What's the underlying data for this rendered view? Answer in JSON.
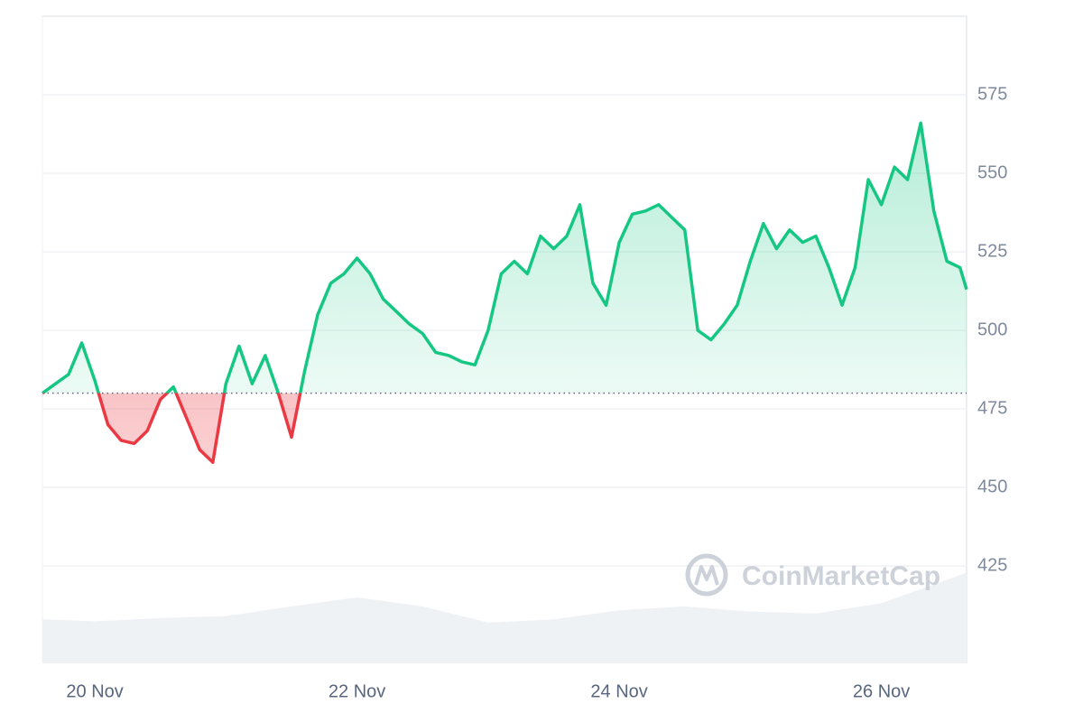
{
  "chart_data": {
    "type": "line",
    "watermark": "CoinMarketCap",
    "x": [
      19.6,
      19.7,
      19.8,
      19.9,
      20.0,
      20.1,
      20.2,
      20.3,
      20.4,
      20.5,
      20.6,
      20.7,
      20.8,
      20.9,
      21.0,
      21.1,
      21.2,
      21.3,
      21.4,
      21.5,
      21.6,
      21.7,
      21.8,
      21.9,
      22.0,
      22.1,
      22.2,
      22.3,
      22.4,
      22.5,
      22.6,
      22.7,
      22.8,
      22.9,
      23.0,
      23.1,
      23.2,
      23.3,
      23.4,
      23.5,
      23.6,
      23.7,
      23.8,
      23.9,
      24.0,
      24.1,
      24.2,
      24.3,
      24.4,
      24.5,
      24.6,
      24.7,
      24.8,
      24.9,
      25.0,
      25.1,
      25.2,
      25.3,
      25.4,
      25.5,
      25.6,
      25.7,
      25.8,
      25.9,
      26.0,
      26.1,
      26.2,
      26.3,
      26.4,
      26.5,
      26.6,
      26.65
    ],
    "series": [
      {
        "color": "#16c784",
        "negative_color": "#ea3943",
        "values": [
          480,
          483,
          486,
          496,
          484,
          470,
          465,
          464,
          468,
          478,
          482,
          472,
          462,
          458,
          483,
          495,
          483,
          492,
          480,
          466,
          487,
          505,
          515,
          518,
          523,
          518,
          510,
          506,
          502,
          499,
          493,
          492,
          490,
          489,
          500,
          518,
          522,
          518,
          530,
          526,
          530,
          540,
          515,
          508,
          528,
          537,
          538,
          540,
          536,
          532,
          500,
          497,
          502,
          508,
          522,
          534,
          526,
          532,
          528,
          530,
          520,
          508,
          520,
          548,
          540,
          552,
          548,
          566,
          538,
          522,
          520,
          513
        ]
      }
    ],
    "baseline": 480,
    "volume": {
      "color": "#eff2f5",
      "x": [
        19.6,
        20.0,
        20.5,
        21.0,
        21.5,
        22.0,
        22.5,
        23.0,
        23.5,
        24.0,
        24.5,
        25.0,
        25.5,
        26.0,
        26.65
      ],
      "values": [
        6.8,
        6.5,
        7,
        7.3,
        8.8,
        10.2,
        8.8,
        6.3,
        6.8,
        8.2,
        8.8,
        8,
        7.7,
        9.3,
        14
      ],
      "axis": "y2"
    },
    "xlim": [
      19.6,
      26.65
    ],
    "xticks": [
      {
        "value": 20,
        "label": "20 Nov"
      },
      {
        "value": 22,
        "label": "22 Nov"
      },
      {
        "value": 24,
        "label": "24 Nov"
      },
      {
        "value": 26,
        "label": "26 Nov"
      }
    ],
    "ylim": [
      394,
      600
    ],
    "yticks": [
      425,
      450,
      475,
      500,
      525,
      550,
      575
    ],
    "y2lim": [
      0,
      100
    ],
    "grid": true
  }
}
